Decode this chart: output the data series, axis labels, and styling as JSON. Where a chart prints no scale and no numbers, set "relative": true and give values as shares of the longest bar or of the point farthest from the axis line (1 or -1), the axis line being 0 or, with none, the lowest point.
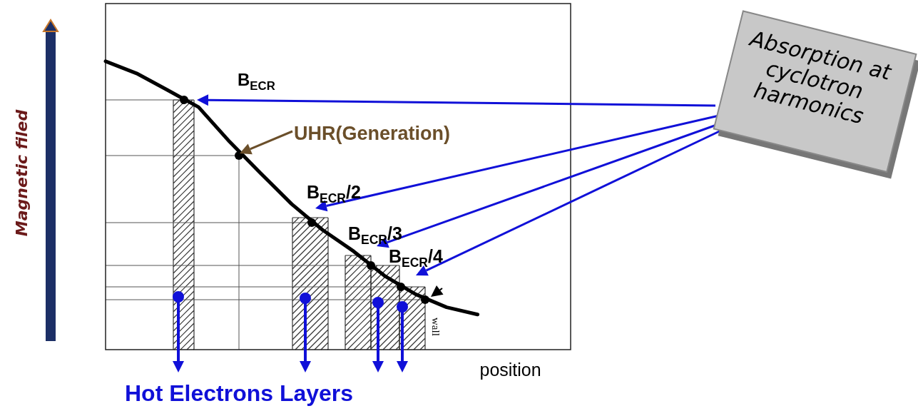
{
  "chart_data": {
    "type": "line",
    "relative": true,
    "categories": [
      null,
      null,
      null,
      null,
      null,
      null,
      null,
      null,
      null,
      null,
      null,
      null,
      null,
      null,
      null,
      null
    ],
    "series": [
      {
        "color": "#000000",
        "values": [
          1,
          0.958,
          0.9,
          0.841,
          0.721,
          0.612,
          0.505,
          0.415,
          0.341,
          0.256,
          0.192,
          0.147,
          0.122,
          null,
          null,
          null
        ]
      }
    ],
    "xlabel": "position",
    "ylabel": "Magnetic filed",
    "annotations": [
      "B$_{ECR}$",
      "UHR(Generation)",
      "B$_{ECR}$/2",
      "B$_{ECR}$/3",
      "B$_{ECR}$/4",
      "wall",
      "Absorption at cyclotron harmonics",
      "Hot Electrons Layers"
    ],
    "grid": false,
    "tick_labels": false
  }
}
